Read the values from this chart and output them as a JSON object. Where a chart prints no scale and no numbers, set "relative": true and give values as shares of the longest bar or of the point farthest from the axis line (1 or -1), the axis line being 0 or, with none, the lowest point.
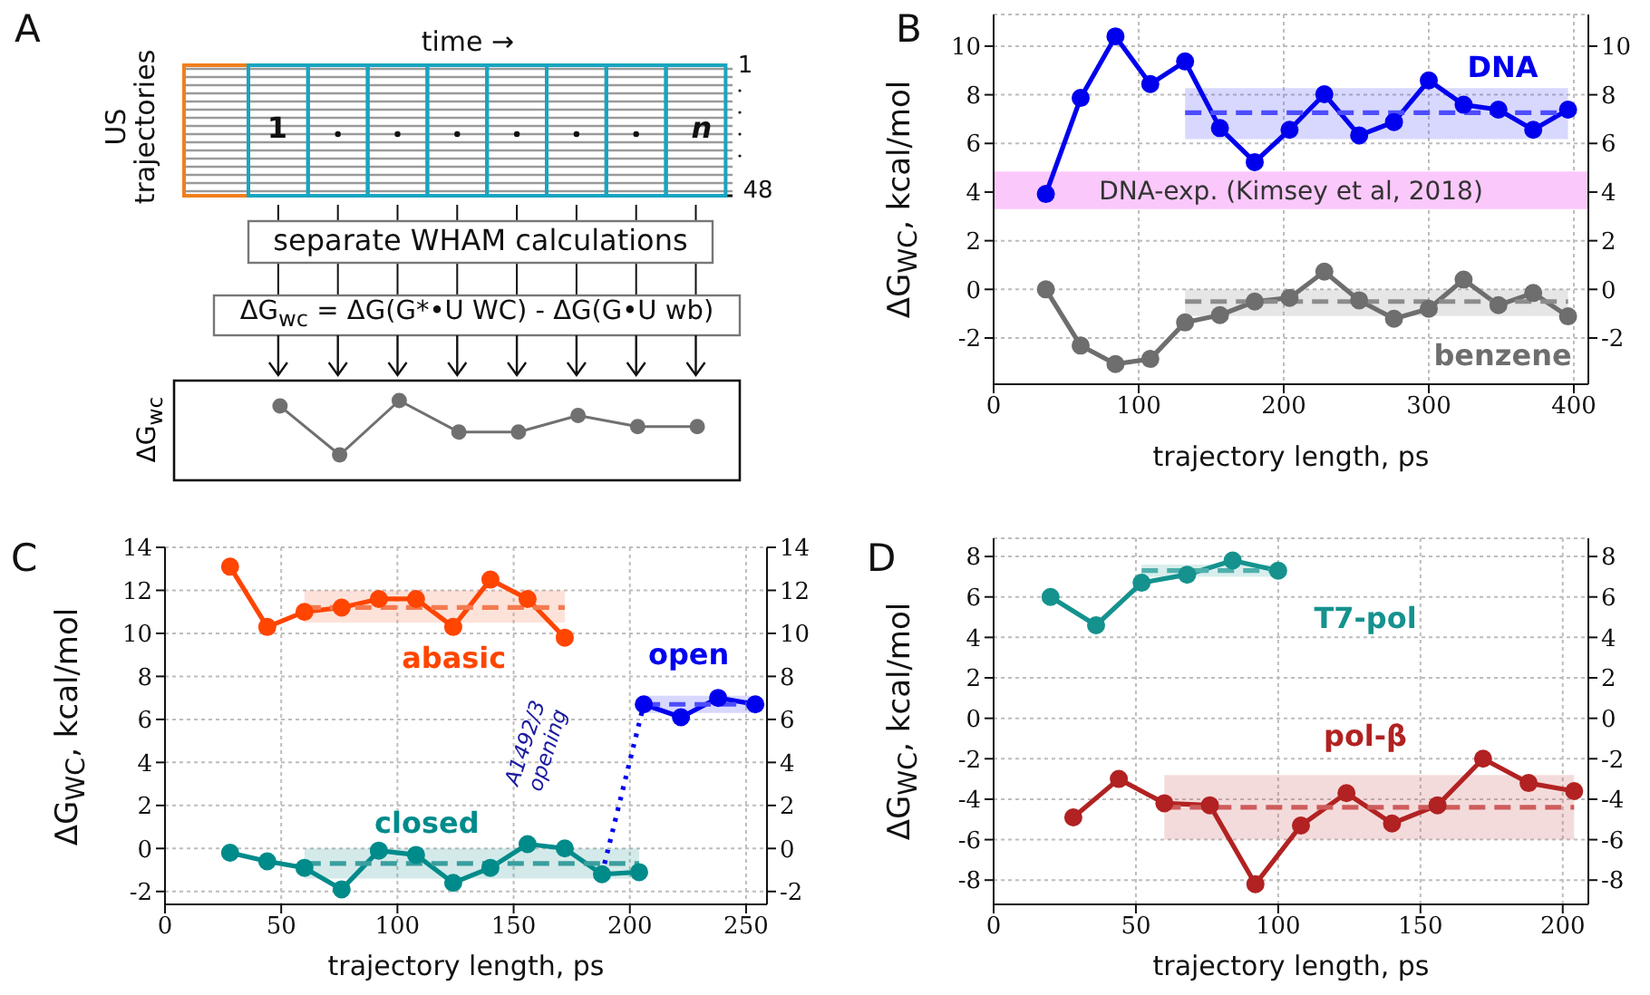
{
  "chart_data": [
    {
      "type": "line",
      "relative": true,
      "categories": [
        null,
        null,
        null,
        null,
        null,
        null,
        null,
        null
      ],
      "ylabel": "ΔG$_{wc}$",
      "marker": "circle",
      "series": [
        {
          "color": "#707070",
          "values": [
            0.93,
            0.31,
            1,
            0.6,
            0.6,
            0.81,
            0.67,
            0.67
          ]
        }
      ],
      "annotations": [
        "A",
        "time →",
        "US trajectories",
        "1",
        "n",
        "1",
        "48",
        "separate WHAM calculations",
        "ΔG$_{wc}$ = ΔG(G*•U WC) - ΔG(G•U wb)"
      ]
    },
    {
      "type": "line",
      "annotations": [
        "B"
      ],
      "xlabel": "trajectory length, ps",
      "ylabel": "ΔG$_{WC}$, kcal/mol",
      "xlim": [
        0,
        410
      ],
      "xticks": [
        0,
        100,
        200,
        300,
        400
      ],
      "ylim": [
        -3.9,
        11.3
      ],
      "yticks": [
        -2,
        0,
        2,
        4,
        6,
        8,
        10
      ],
      "y2lim": [
        -3.9,
        11.3
      ],
      "y2ticks": [
        -2,
        0,
        2,
        4,
        6,
        8,
        10
      ],
      "grid": true,
      "marker": "circle",
      "bands": [
        {
          "axis": "y",
          "from": 3.3,
          "to": 4.85,
          "label": "DNA-exp. (Kimsey et al, 2018)",
          "color": "#fbc8fb"
        }
      ],
      "series": [
        {
          "name": "DNA",
          "color": "#0000ee",
          "x": [
            36,
            60,
            84,
            108,
            132,
            156,
            180,
            204,
            228,
            252,
            276,
            300,
            324,
            348,
            372,
            396
          ],
          "values": [
            3.92,
            7.87,
            10.4,
            8.44,
            9.37,
            6.63,
            5.23,
            6.56,
            8.02,
            6.33,
            6.88,
            8.59,
            7.59,
            7.39,
            6.56,
            7.39
          ]
        },
        {
          "name": "benzene",
          "color": "#6e6e6e",
          "x": [
            36,
            60,
            84,
            108,
            132,
            156,
            180,
            204,
            228,
            252,
            276,
            300,
            324,
            348,
            372,
            396
          ],
          "values": [
            0,
            -2.31,
            -3.07,
            -2.86,
            -1.36,
            -1.06,
            -0.5,
            -0.35,
            0.73,
            -0.45,
            -1.21,
            -0.8,
            0.4,
            -0.65,
            -0.15,
            -1.11
          ]
        },
        {
          "color": "#4d4dff",
          "x": [
            132,
            396
          ],
          "values": [
            7.26,
            7.26
          ],
          "lower": [
            6.18,
            6.18
          ],
          "upper": [
            8.27,
            8.27
          ],
          "line_style": "dashed",
          "marker": "none"
        },
        {
          "color": "#8c8c8c",
          "x": [
            132,
            396
          ],
          "values": [
            -0.5,
            -0.5
          ],
          "lower": [
            -1.1,
            -1.1
          ],
          "upper": [
            0,
            0
          ],
          "line_style": "dashed",
          "marker": "none"
        }
      ]
    },
    {
      "type": "line",
      "annotations": [
        "C",
        "A1492/3 opening"
      ],
      "xlabel": "trajectory length, ps",
      "ylabel": "ΔG$_{WC}$, kcal/mol",
      "xlim": [
        0,
        259
      ],
      "xticks": [
        0,
        50,
        100,
        150,
        200,
        250
      ],
      "ylim": [
        -2.6,
        14
      ],
      "yticks": [
        -2,
        0,
        2,
        4,
        6,
        8,
        10,
        12,
        14
      ],
      "y2lim": [
        -2.6,
        14
      ],
      "y2ticks": [
        -2,
        0,
        2,
        4,
        6,
        8,
        10,
        12,
        14
      ],
      "grid": true,
      "marker": "circle",
      "series": [
        {
          "name": "abasic",
          "color": "#ff4500",
          "x": [
            28,
            44,
            60,
            76,
            92,
            108,
            124,
            140,
            156,
            172
          ],
          "values": [
            13.1,
            10.3,
            11,
            11.2,
            11.6,
            11.6,
            10.3,
            12.5,
            11.6,
            9.8
          ]
        },
        {
          "name": "closed",
          "color": "#008b8b",
          "x": [
            28,
            44,
            60,
            76,
            92,
            108,
            124,
            140,
            156,
            172,
            188,
            204
          ],
          "values": [
            -0.2,
            -0.6,
            -0.9,
            -1.9,
            -0.1,
            -0.3,
            -1.6,
            -0.9,
            0.2,
            0,
            -1.2,
            -1.1
          ]
        },
        {
          "name": "open",
          "color": "#0000ee",
          "x": [
            206,
            222,
            238,
            254
          ],
          "values": [
            6.7,
            6.1,
            7,
            6.7
          ]
        },
        {
          "color": "#f47a50",
          "x": [
            60,
            172
          ],
          "values": [
            11.2,
            11.2
          ],
          "lower": [
            10.5,
            10.5
          ],
          "upper": [
            12,
            12
          ],
          "line_style": "dashed",
          "marker": "none"
        },
        {
          "color": "#3a9e9e",
          "x": [
            60,
            204
          ],
          "values": [
            -0.7,
            -0.7
          ],
          "lower": [
            -1.4,
            -1.4
          ],
          "upper": [
            0,
            0
          ],
          "line_style": "dashed",
          "marker": "none"
        },
        {
          "color": "#4d4dff",
          "x": [
            206,
            254
          ],
          "values": [
            6.7,
            6.7
          ],
          "lower": [
            6.3,
            6.3
          ],
          "upper": [
            7.1,
            7.1
          ],
          "line_style": "dashed",
          "marker": "none"
        },
        {
          "color": "#0000ee",
          "x": [
            188,
            206
          ],
          "values": [
            -1.2,
            6.7
          ],
          "line_style": "dotted",
          "marker": "none"
        }
      ]
    },
    {
      "type": "line",
      "annotations": [
        "D"
      ],
      "xlabel": "trajectory length, ps",
      "ylabel": "ΔG$_{WC}$, kcal/mol",
      "xlim": [
        0,
        209
      ],
      "xticks": [
        0,
        50,
        100,
        150,
        200
      ],
      "ylim": [
        -9.2,
        8.9
      ],
      "yticks": [
        -8,
        -6,
        -4,
        -2,
        0,
        2,
        4,
        6,
        8
      ],
      "y2lim": [
        -9.2,
        8.9
      ],
      "y2ticks": [
        -8,
        -6,
        -4,
        -2,
        0,
        2,
        4,
        6,
        8
      ],
      "grid": true,
      "marker": "circle",
      "series": [
        {
          "name": "T7-pol",
          "color": "#15928e",
          "x": [
            20,
            36,
            52,
            68,
            84,
            100
          ],
          "values": [
            6,
            4.6,
            6.7,
            7.1,
            7.8,
            7.3
          ]
        },
        {
          "name": "pol-β",
          "color": "#b22222",
          "x": [
            28,
            44,
            60,
            76,
            92,
            108,
            124,
            140,
            156,
            172,
            188,
            204
          ],
          "values": [
            -4.9,
            -3,
            -4.2,
            -4.3,
            -8.2,
            -5.3,
            -3.7,
            -5.2,
            -4.3,
            -2,
            -3.2,
            -3.6
          ]
        },
        {
          "color": "#4fb0ac",
          "x": [
            52,
            100
          ],
          "values": [
            7.3,
            7.3
          ],
          "lower": [
            7,
            7
          ],
          "upper": [
            7.6,
            7.6
          ],
          "line_style": "dashed",
          "marker": "none"
        },
        {
          "color": "#cd5c5c",
          "x": [
            60,
            204
          ],
          "values": [
            -4.4,
            -4.4
          ],
          "lower": [
            -6,
            -6
          ],
          "upper": [
            -2.8,
            -2.8
          ],
          "line_style": "dashed",
          "marker": "none"
        }
      ]
    }
  ]
}
